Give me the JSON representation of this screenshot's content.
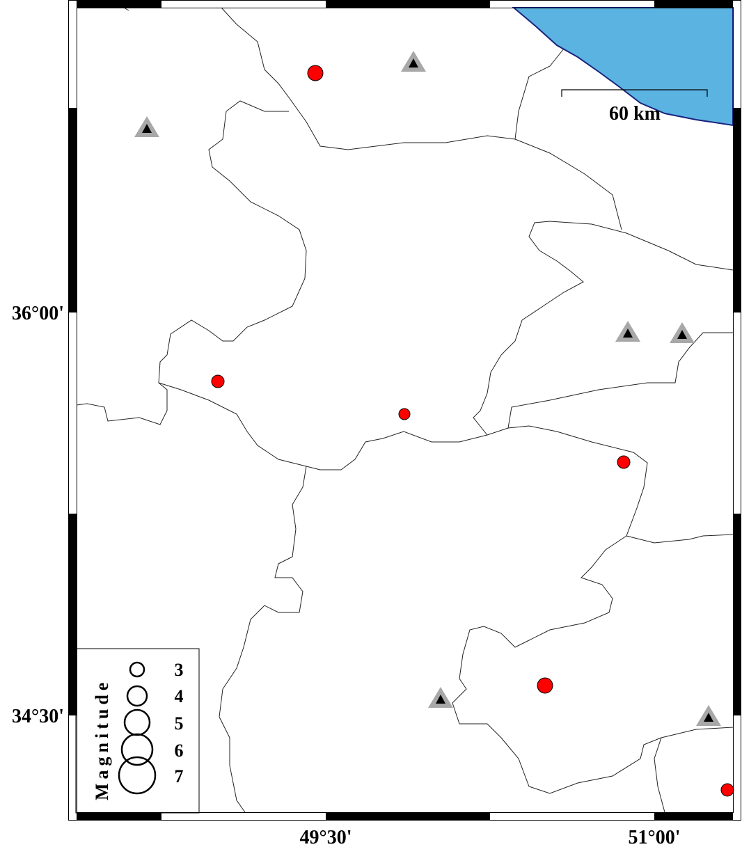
{
  "map": {
    "colors": {
      "sea": "#5ab3e0",
      "coast": "#1a237e",
      "event": "#ff0000",
      "station_outer": "#a8a8a8",
      "station_inner": "#000000",
      "land": "#ffffff"
    },
    "lon_ticks": [
      "49°30'",
      "51°00'"
    ],
    "lat_ticks": [
      "36°00'",
      "34°30'"
    ],
    "scale_bar": {
      "label": "60 km"
    },
    "legend": {
      "title": "Magnitude",
      "magnitudes": [
        "3",
        "4",
        "5",
        "6",
        "7"
      ]
    },
    "events": [
      {
        "id": "e1",
        "size": "large"
      },
      {
        "id": "e2",
        "size": "medium"
      },
      {
        "id": "e3",
        "size": "small"
      },
      {
        "id": "e4",
        "size": "medium"
      },
      {
        "id": "e5",
        "size": "large"
      },
      {
        "id": "e6",
        "size": "medium"
      }
    ],
    "stations": [
      "s1",
      "s2",
      "s3",
      "s4",
      "s5",
      "s6"
    ]
  }
}
